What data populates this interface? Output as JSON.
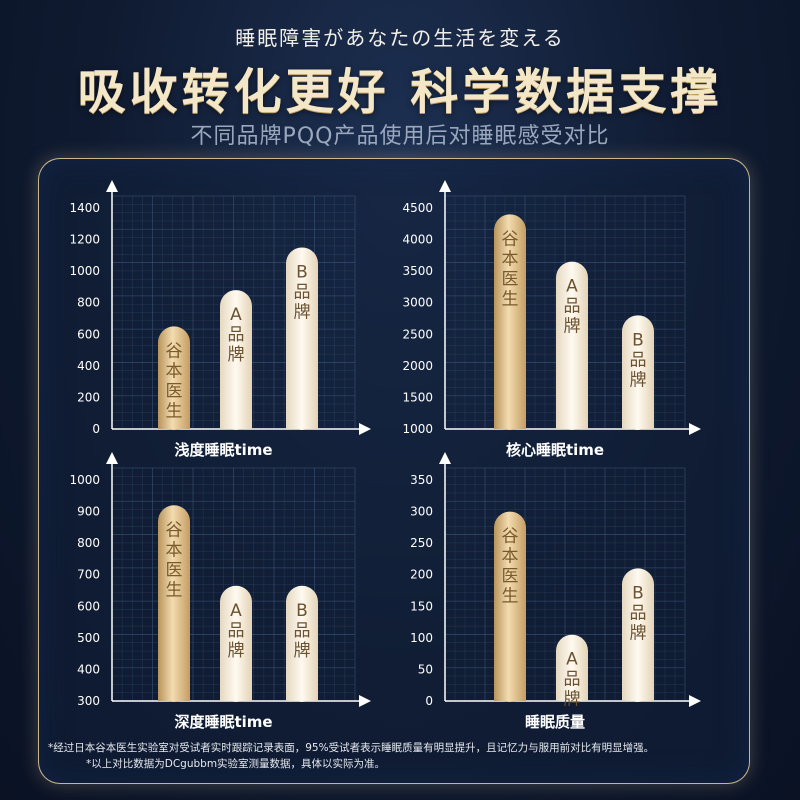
{
  "header": {
    "kicker": "睡眠障害があなたの生活を変える",
    "headline": "吸收转化更好 科学数据支撑",
    "subhead": "不同品牌PQQ产品使用后对睡眠感受对比"
  },
  "colors": {
    "gold_bar": "#d9b882",
    "cream_bar": "#f7efe1",
    "bar_text_dark": "#7a5a2a",
    "bar_text_light": "#6b5230",
    "axis": "#ffffff",
    "grid": "#3a5678"
  },
  "chart_data": [
    {
      "type": "bar",
      "title": "浅度睡眠time",
      "categories": [
        "谷本医生",
        "A品牌",
        "B品牌"
      ],
      "values": [
        650,
        880,
        1150
      ],
      "ylim": [
        0,
        1400
      ],
      "yticks": [
        "1400",
        "1200",
        "1000",
        "800",
        "600",
        "400",
        "200",
        "0"
      ],
      "grid": true
    },
    {
      "type": "bar",
      "title": "核心睡眠time",
      "categories": [
        "谷本医生",
        "A品牌",
        "B品牌"
      ],
      "values": [
        4400,
        3650,
        2800
      ],
      "ylim": [
        1000,
        4500
      ],
      "yticks": [
        "4500",
        "4000",
        "3500",
        "3000",
        "2500",
        "2000",
        "1500",
        "1000"
      ],
      "grid": true
    },
    {
      "type": "bar",
      "title": "深度睡眠time",
      "categories": [
        "谷本医生",
        "A品牌",
        "B品牌"
      ],
      "values": [
        920,
        665,
        665
      ],
      "ylim": [
        300,
        1000
      ],
      "yticks": [
        "1000",
        "900",
        "800",
        "700",
        "600",
        "500",
        "400",
        "300"
      ],
      "grid": true
    },
    {
      "type": "bar",
      "title": "睡眠质量",
      "categories": [
        "谷本医生",
        "A品牌",
        "B品牌"
      ],
      "values": [
        300,
        105,
        210
      ],
      "ylim": [
        0,
        350
      ],
      "yticks": [
        "350",
        "300",
        "250",
        "200",
        "150",
        "100",
        "50",
        "0"
      ],
      "grid": true
    }
  ],
  "footnotes": {
    "line1": "*经过日本谷本医生实验室对受试者实时跟踪记录表面，95%受试者表示睡眠质量有明显提升，且记忆力与服用前对比有明显增强。",
    "line2": "*以上对比数据为DCgubbm实验室测量数据，具体以实际为准。"
  }
}
